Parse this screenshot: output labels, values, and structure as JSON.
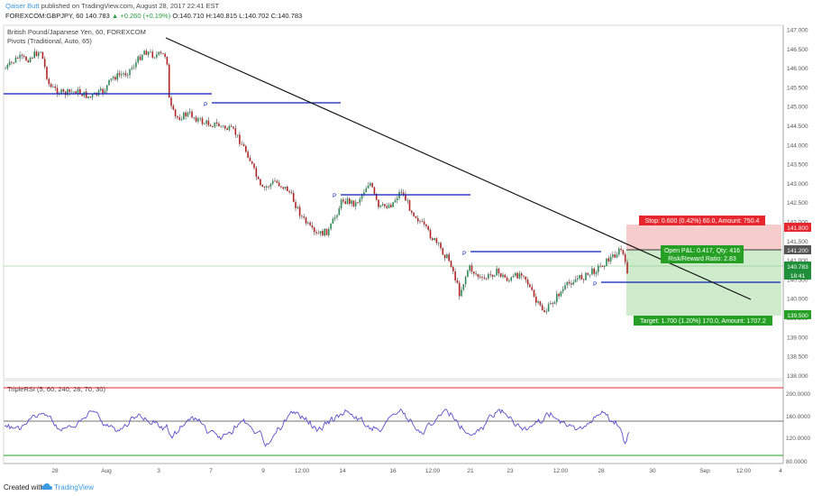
{
  "header": {
    "author": "Qaiser Butt",
    "published": "published on TradingView.com, August 28, 2017 22:41 EST",
    "symbol_line_prefix": "FOREXCOM:GBPJPY, 60  140.783",
    "change": "▲ +0.260 (+0.19%)",
    "ohlc": "O:140.710  H:140.815  L:140.702  C:140.783"
  },
  "chart": {
    "title": "British Pound/Japanese Yen, 60, FOREXCOM",
    "pivots_label": "Pivots (Traditional, Auto, 65)",
    "price_axis": [
      "147.000",
      "146.500",
      "146.000",
      "145.500",
      "145.000",
      "144.500",
      "144.000",
      "143.500",
      "143.000",
      "142.500",
      "142.000",
      "141.500",
      "141.000",
      "140.500",
      "140.000",
      "139.500",
      "139.000",
      "138.500",
      "138.000"
    ],
    "time_axis": [
      "28",
      "Aug",
      "3",
      "7",
      "9",
      "12:00",
      "14",
      "16",
      "12:00",
      "21",
      "23",
      "12:00",
      "28",
      "30",
      "Sep",
      "12:00",
      "4"
    ],
    "pivot_label": "P",
    "position": {
      "stop_label": "Stop: 0.600 (0.42%) 60.0, Amount: 750.4",
      "open_label": "Open P&L: 0.417, Qty: 416",
      "rr_label": "Risk/Reward Ratio: 2.83",
      "target_label": "Target: 1.700 (1.20%) 170.0, Amount: 1707.2",
      "stop_price": "141.800",
      "entry_price": "141.200",
      "current_price": "140.783",
      "time_tag": "18:41",
      "target_price": "139.500"
    },
    "colors": {
      "up": "#2e8b57",
      "down": "#b22222",
      "pivot": "#0b1fb8",
      "stop": "#e6282e",
      "target": "#25a025",
      "rsi": "#5b4fc9"
    }
  },
  "rsi": {
    "label": "TripleRSI (5, 60, 240, 28, 70, 30)",
    "axis": [
      "200.0000",
      "160.0000",
      "120.0000",
      "80.0000"
    ]
  },
  "footer": {
    "created": "Created with",
    "brand": "TradingView"
  }
}
